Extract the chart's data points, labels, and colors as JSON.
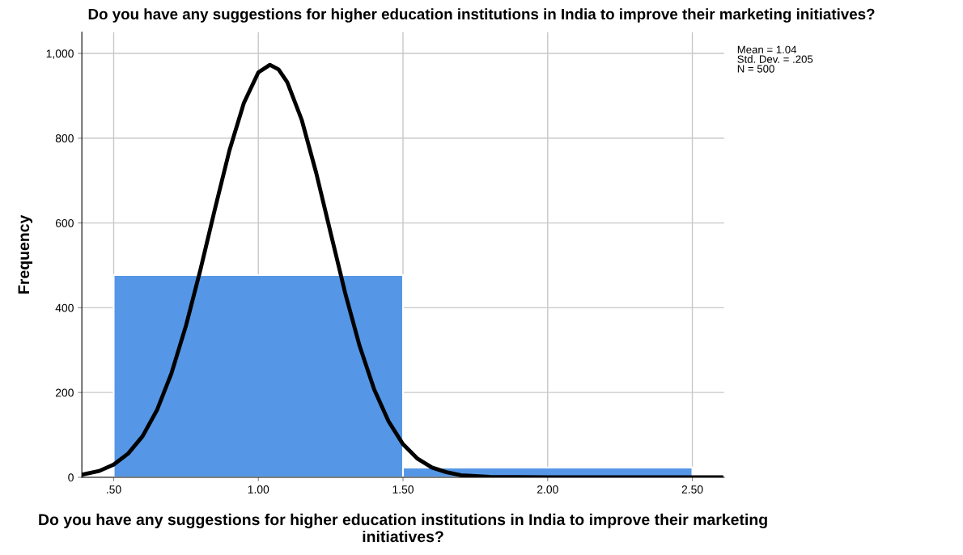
{
  "chart_data": {
    "type": "histogram",
    "title": "Do you have any suggestions for higher education institutions in India to improve their marketing initiatives?",
    "xlabel": "Do you have any suggestions for higher education institutions in India to improve their marketing initiatives?",
    "ylabel": "Frequency",
    "series": [
      {
        "color": "#5596e6",
        "bins": [
          0.5,
          1.5,
          2.5
        ],
        "values": [
          477,
          23
        ]
      },
      {
        "type": "line",
        "color": "#000000",
        "x": [
          0.39,
          0.45,
          0.5,
          0.55,
          0.6,
          0.65,
          0.7,
          0.75,
          0.8,
          0.85,
          0.9,
          0.95,
          1.0,
          1.04,
          1.07,
          1.1,
          1.15,
          1.2,
          1.25,
          1.3,
          1.35,
          1.4,
          1.45,
          1.5,
          1.55,
          1.6,
          1.65,
          1.7,
          1.8,
          2.0,
          2.6
        ],
        "values": [
          6,
          15,
          30,
          56,
          97,
          159,
          246,
          358,
          490,
          633,
          771,
          883,
          955,
          973,
          962,
          932,
          843,
          718,
          576,
          435,
          310,
          208,
          132,
          78,
          44,
          23,
          12,
          5,
          1,
          0,
          0
        ]
      }
    ],
    "xlim": [
      0.39,
      2.61
    ],
    "xticks": [
      {
        "value": 0.5,
        "label": ".50"
      },
      {
        "value": 1.0,
        "label": "1.00"
      },
      {
        "value": 1.5,
        "label": "1.50"
      },
      {
        "value": 2.0,
        "label": "2.00"
      },
      {
        "value": 2.5,
        "label": "2.50"
      }
    ],
    "ylim": [
      0,
      1050
    ],
    "yticks": [
      0,
      200,
      400,
      600,
      800,
      {
        "value": 1000,
        "label": "1,000"
      }
    ],
    "grid": true,
    "annotations": [
      "Mean = 1.04",
      "Std. Dev. = .205",
      "N = 500"
    ]
  }
}
